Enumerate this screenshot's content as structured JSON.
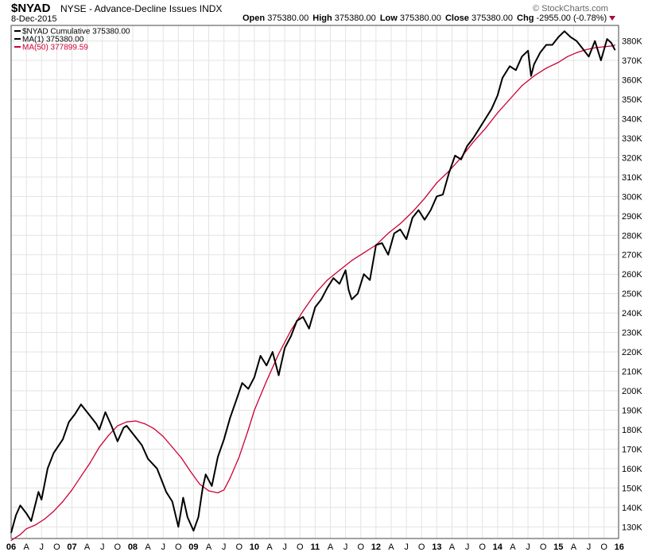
{
  "header": {
    "symbol": "$NYAD",
    "description": "NYSE - Advance-Decline Issues INDX",
    "date": "8-Dec-2015",
    "brand": "© StockCharts.com",
    "ohlc": {
      "open_label": "Open",
      "open": "375380.00",
      "high_label": "High",
      "high": "375380.00",
      "low_label": "Low",
      "low": "375380.00",
      "close_label": "Close",
      "close": "375380.00",
      "chg_label": "Chg",
      "chg": "-2955.00 (-0.78%)"
    },
    "chg_arrow_color": "#a1113a"
  },
  "chart_data": {
    "type": "line",
    "legend": [
      {
        "text": "$NYAD Cumulative 375380.00",
        "color": "#000000"
      },
      {
        "text": "MA(1) 375380.00",
        "color": "#000000"
      },
      {
        "text": "MA(50) 377899.59",
        "color": "#cc0033"
      }
    ],
    "x_range": [
      2006.0,
      2015.99
    ],
    "ylim": [
      124000,
      388000
    ],
    "y_ticks": [
      "130K",
      "140K",
      "150K",
      "160K",
      "170K",
      "180K",
      "190K",
      "200K",
      "210K",
      "220K",
      "230K",
      "240K",
      "250K",
      "260K",
      "270K",
      "280K",
      "290K",
      "300K",
      "310K",
      "320K",
      "330K",
      "340K",
      "350K",
      "360K",
      "370K",
      "380K"
    ],
    "y_tick_values": [
      130000,
      140000,
      150000,
      160000,
      170000,
      180000,
      190000,
      200000,
      210000,
      220000,
      230000,
      240000,
      250000,
      260000,
      270000,
      280000,
      290000,
      300000,
      310000,
      320000,
      330000,
      340000,
      350000,
      360000,
      370000,
      380000
    ],
    "x_ticks": [
      {
        "label": "06",
        "t": 2006.0,
        "year": true
      },
      {
        "label": "A",
        "t": 2006.25
      },
      {
        "label": "J",
        "t": 2006.5
      },
      {
        "label": "O",
        "t": 2006.75
      },
      {
        "label": "07",
        "t": 2007.0,
        "year": true
      },
      {
        "label": "A",
        "t": 2007.25
      },
      {
        "label": "J",
        "t": 2007.5
      },
      {
        "label": "O",
        "t": 2007.75
      },
      {
        "label": "08",
        "t": 2008.0,
        "year": true
      },
      {
        "label": "A",
        "t": 2008.25
      },
      {
        "label": "J",
        "t": 2008.5
      },
      {
        "label": "O",
        "t": 2008.75
      },
      {
        "label": "09",
        "t": 2009.0,
        "year": true
      },
      {
        "label": "A",
        "t": 2009.25
      },
      {
        "label": "J",
        "t": 2009.5
      },
      {
        "label": "O",
        "t": 2009.75
      },
      {
        "label": "10",
        "t": 2010.0,
        "year": true
      },
      {
        "label": "A",
        "t": 2010.25
      },
      {
        "label": "J",
        "t": 2010.5
      },
      {
        "label": "O",
        "t": 2010.75
      },
      {
        "label": "11",
        "t": 2011.0,
        "year": true
      },
      {
        "label": "A",
        "t": 2011.25
      },
      {
        "label": "J",
        "t": 2011.5
      },
      {
        "label": "O",
        "t": 2011.75
      },
      {
        "label": "12",
        "t": 2012.0,
        "year": true
      },
      {
        "label": "A",
        "t": 2012.25
      },
      {
        "label": "J",
        "t": 2012.5
      },
      {
        "label": "O",
        "t": 2012.75
      },
      {
        "label": "13",
        "t": 2013.0,
        "year": true
      },
      {
        "label": "A",
        "t": 2013.25
      },
      {
        "label": "J",
        "t": 2013.5
      },
      {
        "label": "O",
        "t": 2013.75
      },
      {
        "label": "14",
        "t": 2014.0,
        "year": true
      },
      {
        "label": "A",
        "t": 2014.25
      },
      {
        "label": "J",
        "t": 2014.5
      },
      {
        "label": "O",
        "t": 2014.75
      },
      {
        "label": "15",
        "t": 2015.0,
        "year": true
      },
      {
        "label": "A",
        "t": 2015.25
      },
      {
        "label": "J",
        "t": 2015.5
      },
      {
        "label": "O",
        "t": 2015.75
      },
      {
        "label": "16",
        "t": 2016.0,
        "year": true
      }
    ],
    "grid": true,
    "series": [
      {
        "name": "$NYAD Cumulative",
        "color": "#000000",
        "x": [
          2006.0,
          2006.08,
          2006.15,
          2006.25,
          2006.33,
          2006.45,
          2006.5,
          2006.6,
          2006.7,
          2006.85,
          2006.95,
          2007.05,
          2007.15,
          2007.3,
          2007.4,
          2007.45,
          2007.55,
          2007.65,
          2007.75,
          2007.85,
          2007.9,
          2008.05,
          2008.15,
          2008.25,
          2008.4,
          2008.55,
          2008.65,
          2008.75,
          2008.83,
          2008.9,
          2009.0,
          2009.08,
          2009.15,
          2009.2,
          2009.3,
          2009.4,
          2009.5,
          2009.6,
          2009.7,
          2009.8,
          2009.9,
          2010.0,
          2010.1,
          2010.2,
          2010.3,
          2010.4,
          2010.5,
          2010.6,
          2010.7,
          2010.8,
          2010.9,
          2011.0,
          2011.1,
          2011.2,
          2011.3,
          2011.4,
          2011.5,
          2011.55,
          2011.6,
          2011.7,
          2011.8,
          2011.9,
          2012.0,
          2012.1,
          2012.2,
          2012.3,
          2012.4,
          2012.5,
          2012.6,
          2012.7,
          2012.8,
          2012.9,
          2013.0,
          2013.1,
          2013.2,
          2013.3,
          2013.4,
          2013.5,
          2013.6,
          2013.7,
          2013.8,
          2013.9,
          2014.0,
          2014.08,
          2014.2,
          2014.3,
          2014.4,
          2014.5,
          2014.55,
          2014.6,
          2014.7,
          2014.8,
          2014.9,
          2015.0,
          2015.1,
          2015.2,
          2015.3,
          2015.4,
          2015.5,
          2015.6,
          2015.7,
          2015.8,
          2015.87,
          2015.93
        ],
        "y": [
          127000,
          136000,
          141000,
          137000,
          133000,
          148000,
          144000,
          160000,
          168000,
          175000,
          184000,
          188000,
          193000,
          187000,
          183000,
          180000,
          189000,
          182000,
          174000,
          181000,
          182000,
          176000,
          172000,
          165000,
          160000,
          148000,
          143000,
          130000,
          145000,
          135000,
          128000,
          135000,
          150000,
          157000,
          151000,
          166000,
          175000,
          186000,
          195000,
          204000,
          201000,
          207000,
          218000,
          213000,
          220000,
          208000,
          222000,
          228000,
          236000,
          238000,
          232000,
          243000,
          247000,
          253000,
          258000,
          255000,
          262000,
          252000,
          247000,
          250000,
          260000,
          257000,
          275000,
          276000,
          270000,
          281000,
          283000,
          278000,
          289000,
          293000,
          288000,
          293000,
          300000,
          301000,
          312000,
          321000,
          319000,
          326000,
          330000,
          335000,
          340000,
          345000,
          352000,
          361000,
          367000,
          365000,
          372000,
          375000,
          362000,
          368000,
          374000,
          378000,
          378000,
          382000,
          385000,
          382000,
          380000,
          376000,
          372000,
          380000,
          370000,
          381000,
          379000,
          375380
        ]
      },
      {
        "name": "MA(50)",
        "color": "#cc0033",
        "x": [
          2006.0,
          2006.15,
          2006.25,
          2006.4,
          2006.55,
          2006.7,
          2006.85,
          2007.0,
          2007.15,
          2007.3,
          2007.45,
          2007.6,
          2007.75,
          2007.9,
          2008.05,
          2008.2,
          2008.35,
          2008.5,
          2008.65,
          2008.8,
          2008.95,
          2009.1,
          2009.25,
          2009.4,
          2009.5,
          2009.6,
          2009.75,
          2009.9,
          2010.0,
          2010.2,
          2010.4,
          2010.6,
          2010.8,
          2011.0,
          2011.2,
          2011.4,
          2011.6,
          2011.8,
          2012.0,
          2012.2,
          2012.4,
          2012.6,
          2012.8,
          2013.0,
          2013.2,
          2013.4,
          2013.6,
          2013.8,
          2014.0,
          2014.2,
          2014.4,
          2014.6,
          2014.8,
          2015.0,
          2015.15,
          2015.3,
          2015.45,
          2015.6,
          2015.75,
          2015.9,
          2015.93
        ],
        "y": [
          123000,
          126000,
          129000,
          131000,
          134000,
          138000,
          143000,
          149000,
          156000,
          163000,
          171000,
          177000,
          182000,
          184000,
          184500,
          183000,
          180500,
          176500,
          171000,
          165500,
          158500,
          152000,
          148500,
          147500,
          149000,
          155000,
          166000,
          180000,
          190000,
          205000,
          219000,
          231000,
          241000,
          250000,
          257000,
          262000,
          267000,
          271000,
          275000,
          281000,
          286000,
          292000,
          299000,
          307000,
          313000,
          320000,
          328000,
          335000,
          343000,
          350000,
          357000,
          362000,
          366000,
          369000,
          372000,
          374000,
          375500,
          376500,
          377000,
          377500,
          377900
        ]
      }
    ]
  }
}
